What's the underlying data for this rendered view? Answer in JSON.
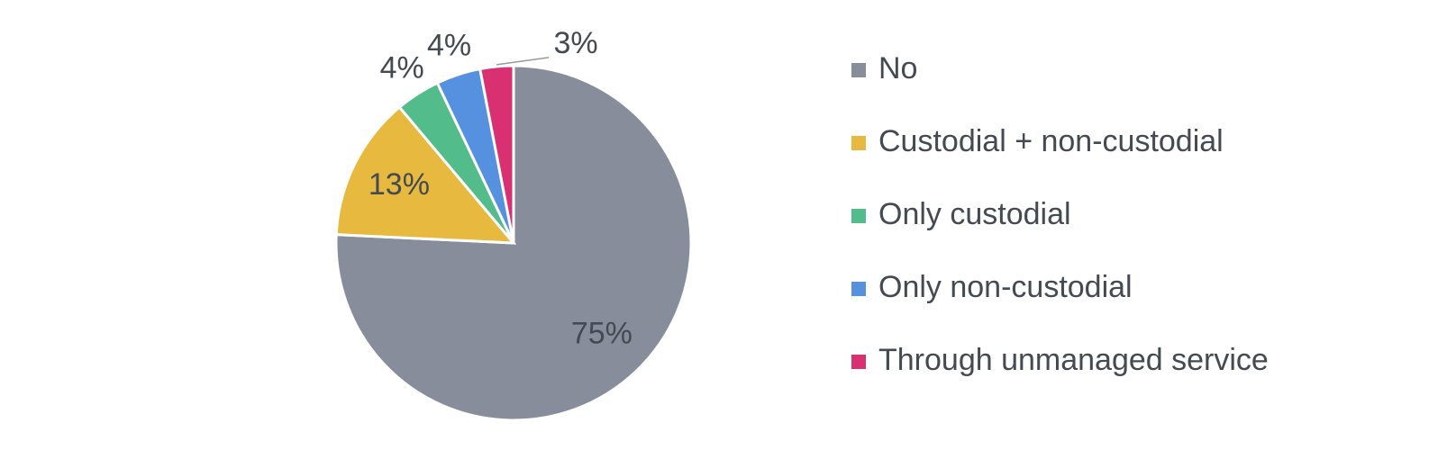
{
  "chart_data": {
    "type": "pie",
    "categories": [
      "No",
      "Custodial + non-custodial",
      "Only custodial",
      "Only non-custodial",
      "Through unmanaged service"
    ],
    "values": [
      75,
      13,
      4,
      4,
      3
    ],
    "value_labels": [
      "75%",
      "13%",
      "4%",
      "4%",
      "3%"
    ],
    "colors": [
      "#878d9a",
      "#e8b93f",
      "#52bc8a",
      "#5591de",
      "#d93072"
    ],
    "legend": "right"
  }
}
